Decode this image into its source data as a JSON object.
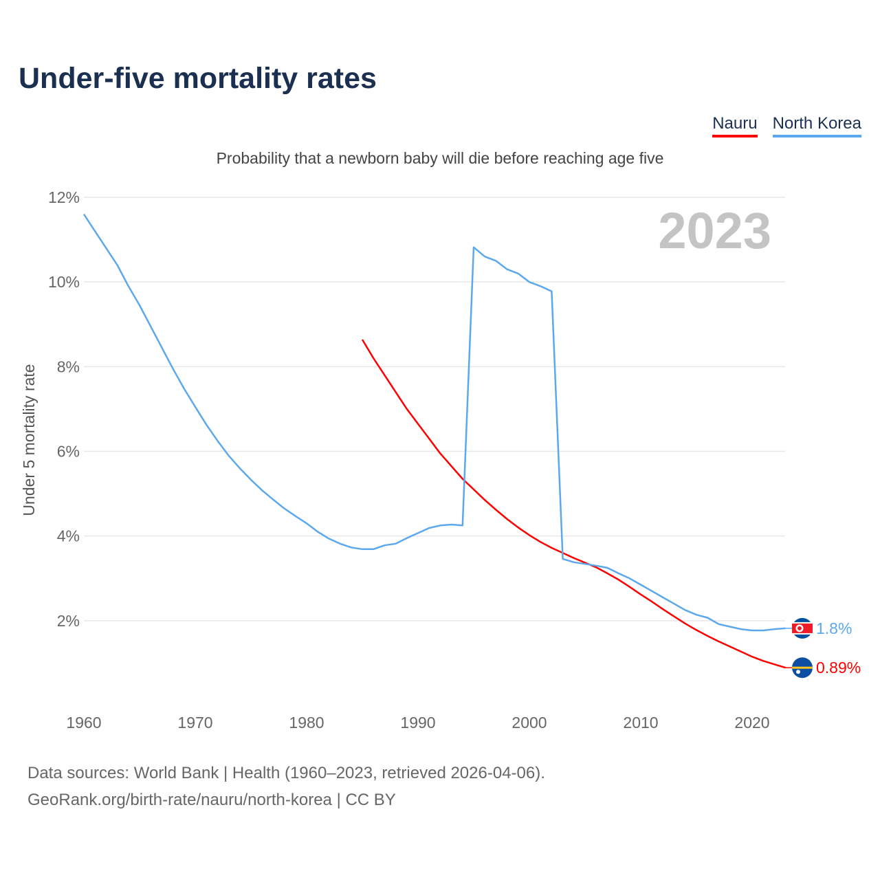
{
  "chart_data": {
    "type": "line",
    "title": "Under-five mortality rates",
    "subtitle": "Probability that a newborn baby will die before reaching age five",
    "ylabel": "Under 5 mortality rate",
    "xlabel": "",
    "year_watermark": "2023",
    "xlim": [
      1960,
      2023
    ],
    "ylim": [
      0,
      12
    ],
    "x_ticks": [
      1960,
      1970,
      1980,
      1990,
      2000,
      2010,
      2020
    ],
    "x_tick_labels": [
      "1960",
      "1970",
      "1980",
      "1990",
      "2000",
      "2010",
      "2020"
    ],
    "y_ticks": [
      2,
      4,
      6,
      8,
      10,
      12
    ],
    "y_tick_labels": [
      "2%",
      "4%",
      "6%",
      "8%",
      "10%",
      "12%"
    ],
    "grid": true,
    "legend_placement": "top-right",
    "series": [
      {
        "name": "Nauru",
        "color": "#ff0000",
        "end_label": "0.89%",
        "flag": "nauru-flag",
        "start_year": 1985,
        "values": [
          8.64,
          8.2,
          7.8,
          7.4,
          7.0,
          6.65,
          6.3,
          5.95,
          5.65,
          5.35,
          5.1,
          4.85,
          4.62,
          4.4,
          4.2,
          4.02,
          3.86,
          3.72,
          3.6,
          3.48,
          3.37,
          3.26,
          3.12,
          2.97,
          2.8,
          2.62,
          2.45,
          2.27,
          2.1,
          1.93,
          1.78,
          1.64,
          1.51,
          1.39,
          1.27,
          1.15,
          1.05,
          0.97,
          0.89
        ]
      },
      {
        "name": "North Korea",
        "color": "#5ca8ec",
        "end_label": "1.8%",
        "flag": "north-korea-flag",
        "start_year": 1960,
        "values": [
          11.6,
          11.2,
          10.8,
          10.4,
          9.9,
          9.45,
          8.95,
          8.45,
          7.95,
          7.48,
          7.05,
          6.63,
          6.25,
          5.9,
          5.6,
          5.33,
          5.08,
          4.86,
          4.65,
          4.47,
          4.3,
          4.1,
          3.94,
          3.82,
          3.73,
          3.69,
          3.69,
          3.78,
          3.82,
          3.95,
          4.07,
          4.19,
          4.25,
          4.27,
          4.25,
          10.82,
          10.6,
          10.5,
          10.3,
          10.2,
          10.0,
          9.9,
          9.78,
          3.46,
          3.38,
          3.34,
          3.3,
          3.25,
          3.12,
          3.0,
          2.85,
          2.7,
          2.55,
          2.4,
          2.25,
          2.14,
          2.07,
          1.92,
          1.86,
          1.8,
          1.77,
          1.77,
          1.8,
          1.82
        ]
      }
    ]
  },
  "footer": {
    "line1": "Data sources: World Bank | Health (1960–2023, retrieved 2026-04-06).",
    "line2": "GeoRank.org/birth-rate/nauru/north-korea | CC BY"
  }
}
